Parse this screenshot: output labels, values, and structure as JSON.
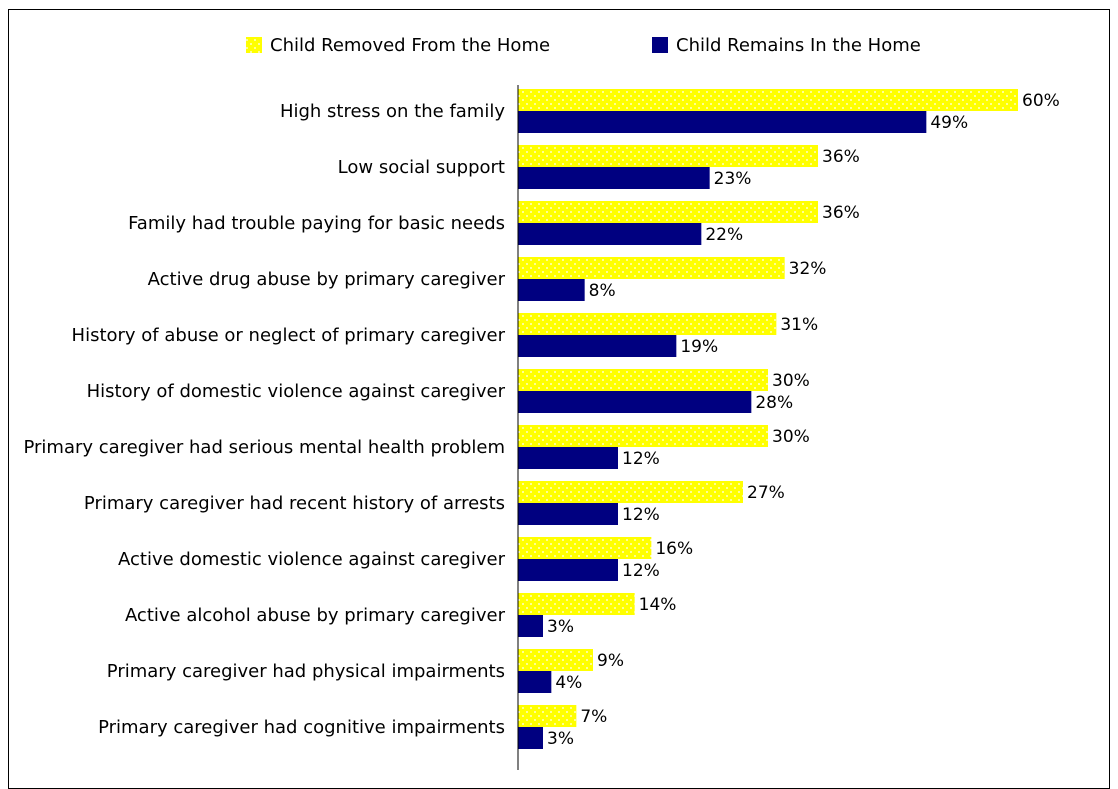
{
  "chart_data": {
    "type": "bar",
    "orientation": "horizontal",
    "title": "",
    "xlabel": "",
    "ylabel": "",
    "xlim": [
      0,
      60
    ],
    "grid": false,
    "legend_position": "top",
    "categories": [
      "High stress on the family",
      "Low social support",
      "Family had trouble paying for basic needs",
      "Active drug abuse by primary caregiver",
      "History of abuse or neglect of primary caregiver",
      "History of domestic violence against caregiver",
      "Primary caregiver had serious mental health problem",
      "Primary caregiver had recent history of arrests",
      "Active domestic violence against caregiver",
      "Active alcohol abuse by primary caregiver",
      "Primary caregiver had physical impairments",
      "Primary caregiver had cognitive impairments"
    ],
    "series": [
      {
        "name": "Child Removed From the Home",
        "color": "#ffff00",
        "pattern": "dotted",
        "values": [
          60,
          36,
          36,
          32,
          31,
          30,
          30,
          27,
          16,
          14,
          9,
          7
        ]
      },
      {
        "name": "Child Remains In the Home",
        "color": "#000080",
        "pattern": "solid",
        "values": [
          49,
          23,
          22,
          8,
          19,
          28,
          12,
          12,
          12,
          3,
          4,
          3
        ]
      }
    ],
    "value_suffix": "%"
  }
}
